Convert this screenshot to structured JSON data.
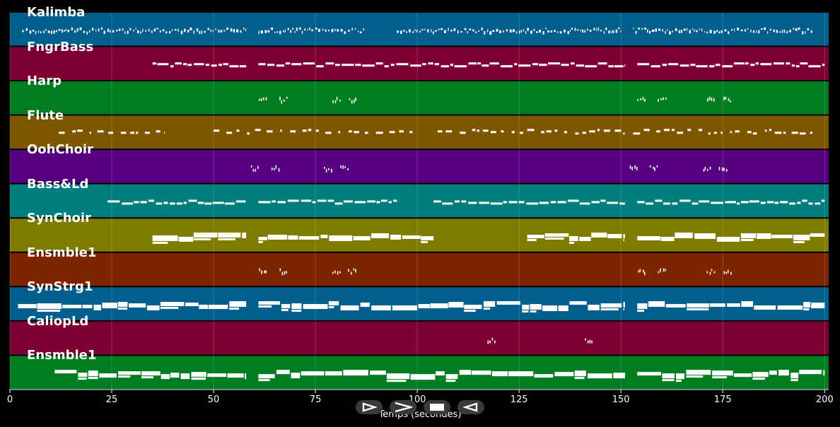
{
  "tracks": [
    {
      "name": "Kalimba",
      "color": "#005f8c",
      "style": "dense",
      "segments": [
        [
          3,
          58
        ],
        [
          61,
          87
        ],
        [
          95,
          150
        ],
        [
          153,
          158
        ],
        [
          158,
          197
        ]
      ]
    },
    {
      "name": "FngrBass",
      "color": "#7e0032",
      "style": "bass",
      "segments": [
        [
          35,
          58
        ],
        [
          61,
          151
        ],
        [
          154,
          200
        ]
      ]
    },
    {
      "name": "Harp",
      "color": "#007d20",
      "style": "cluster",
      "clusters": [
        61,
        66,
        79,
        83,
        154,
        159,
        171,
        175
      ]
    },
    {
      "name": "Flute",
      "color": "#7e5600",
      "style": "sparse",
      "segments": [
        [
          12,
          38
        ],
        [
          50,
          100
        ],
        [
          105,
          151
        ],
        [
          153,
          197
        ]
      ]
    },
    {
      "name": "OohChoir",
      "color": "#560080",
      "style": "cluster",
      "clusters": [
        59,
        64,
        77,
        81,
        152,
        157,
        170,
        174
      ]
    },
    {
      "name": "Bass&Ld",
      "color": "#007d7d",
      "style": "bass",
      "segments": [
        [
          24,
          58
        ],
        [
          61,
          95
        ],
        [
          104,
          151
        ],
        [
          154,
          200
        ]
      ]
    },
    {
      "name": "SynChoir",
      "color": "#7e7c00",
      "style": "thick",
      "segments": [
        [
          35,
          58
        ],
        [
          61,
          104
        ],
        [
          127,
          151
        ],
        [
          154,
          200
        ]
      ]
    },
    {
      "name": "Ensmble1",
      "color": "#7e2400",
      "style": "cluster",
      "clusters": [
        61,
        66,
        79,
        83,
        154,
        159,
        171,
        175
      ]
    },
    {
      "name": "SynStrg1",
      "color": "#005f8c",
      "style": "thick",
      "segments": [
        [
          2,
          58
        ],
        [
          61,
          151
        ],
        [
          154,
          200
        ]
      ]
    },
    {
      "name": "CaliopLd",
      "color": "#7e0032",
      "style": "cluster",
      "clusters": [
        117,
        141
      ]
    },
    {
      "name": "Ensmble1",
      "color": "#007d20",
      "style": "thick",
      "segments": [
        [
          11,
          58
        ],
        [
          61,
          151
        ],
        [
          154,
          200
        ]
      ]
    }
  ],
  "axis": {
    "xlabel": "Temps (secondes)",
    "xlim": [
      0,
      201
    ],
    "ticks": [
      0,
      25,
      50,
      75,
      100,
      125,
      150,
      175,
      200
    ],
    "tick_labels": [
      "0",
      "25",
      "50",
      "75",
      "100",
      "125",
      "150",
      "175",
      "200"
    ]
  },
  "controls": [
    {
      "name": "play-button",
      "icon": "play-icon"
    },
    {
      "name": "next-button",
      "icon": "forward-icon"
    },
    {
      "name": "stop-button",
      "icon": "stop-icon"
    },
    {
      "name": "previous-button",
      "icon": "back-icon"
    }
  ]
}
